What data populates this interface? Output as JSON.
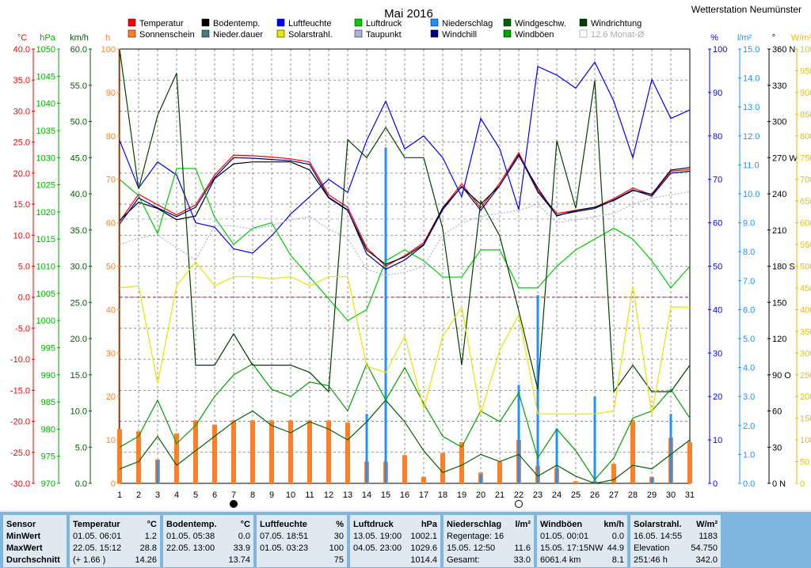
{
  "title": "Mai 2016",
  "station": "Wetterstation Neumünster",
  "legend_note": "12.6 Monat-Ø",
  "chart_data": {
    "type": "line",
    "x": [
      1,
      2,
      3,
      4,
      5,
      6,
      7,
      8,
      9,
      10,
      11,
      12,
      13,
      14,
      15,
      16,
      17,
      18,
      19,
      20,
      21,
      22,
      23,
      24,
      25,
      26,
      27,
      28,
      29,
      30,
      31
    ],
    "xticks": [
      "1",
      "2",
      "3",
      "4",
      "5",
      "6",
      "7",
      "8",
      "9",
      "10",
      "11",
      "12",
      "13",
      "14",
      "15",
      "16",
      "17",
      "18",
      "19",
      "20",
      "21",
      "22",
      "23",
      "24",
      "25",
      "26",
      "27",
      "28",
      "29",
      "30",
      "31"
    ],
    "axes": [
      {
        "unit": "°C",
        "color": "#ff0000",
        "min": -30,
        "max": 40,
        "ticks": [
          "40.0",
          "35.0",
          "30.0",
          "25.0",
          "20.0",
          "15.0",
          "10.0",
          "5.0",
          "0.0",
          "-5.0",
          "-10.0",
          "-15.0",
          "-20.0",
          "-25.0",
          "-30.0"
        ]
      },
      {
        "unit": "hPa",
        "color": "#00b000",
        "min": 970,
        "max": 1050,
        "ticks": [
          "1050",
          "1045",
          "1040",
          "1035",
          "1030",
          "1025",
          "1020",
          "1015",
          "1010",
          "1005",
          "1000",
          "995",
          "990",
          "985",
          "980",
          "975",
          "970"
        ]
      },
      {
        "unit": "km/h",
        "color": "#006000",
        "min": 0,
        "max": 60,
        "ticks": [
          "60.0",
          "55.0",
          "50.0",
          "45.0",
          "40.0",
          "35.0",
          "30.0",
          "25.0",
          "20.0",
          "15.0",
          "10.0",
          "5.0",
          "0.0"
        ]
      },
      {
        "unit": "h",
        "color": "#ff7f27",
        "min": 0,
        "max": 100,
        "ticks": [
          "100",
          "90",
          "80",
          "70",
          "60",
          "50",
          "40",
          "30",
          "20",
          "10",
          "0"
        ]
      },
      {
        "unit": "%",
        "color": "#0000ff",
        "min": 0,
        "max": 100,
        "ticks": [
          "100",
          "90",
          "80",
          "70",
          "60",
          "50",
          "40",
          "30",
          "20",
          "10",
          "0"
        ]
      },
      {
        "unit": "l/m²",
        "color": "#1e90ff",
        "min": 0,
        "max": 15,
        "ticks": [
          "15.0",
          "14.0",
          "13.0",
          "12.0",
          "11.0",
          "10.0",
          "9.0",
          "8.0",
          "7.0",
          "6.0",
          "5.0",
          "4.0",
          "3.0",
          "2.0",
          "1.0",
          "0.0"
        ]
      },
      {
        "unit": "°",
        "color": "#000000",
        "min": 0,
        "max": 360,
        "ticks": [
          "360 N",
          "330",
          "300",
          "270 W",
          "240",
          "210",
          "180 S",
          "150",
          "120",
          "90 O",
          "60",
          "30",
          "0 N"
        ]
      },
      {
        "unit": "W/m²",
        "color": "#e6c200",
        "min": 0,
        "max": 1000,
        "ticks": [
          "1000",
          "950",
          "900",
          "850",
          "800",
          "750",
          "700",
          "650",
          "600",
          "550",
          "500",
          "450",
          "400",
          "350",
          "300",
          "250",
          "200",
          "150",
          "100",
          "50",
          "0"
        ]
      }
    ],
    "series": [
      {
        "name": "Temperatur",
        "color": "#ff0000",
        "axis": 0,
        "values": [
          12.2,
          16.6,
          14.9,
          13.3,
          14.9,
          19.7,
          22.9,
          22.8,
          22.6,
          22.3,
          21.8,
          16.5,
          14.5,
          8.0,
          5.0,
          6.7,
          8.8,
          14.4,
          18.3,
          14.4,
          18.4,
          23.3,
          17.2,
          13.5,
          14.0,
          14.5,
          15.9,
          17.6,
          16.5,
          20.3,
          20.6
        ]
      },
      {
        "name": "Bodentemp.",
        "color": "#000000",
        "axis": 0,
        "values": [
          12.4,
          15.3,
          14.3,
          12.5,
          13.1,
          19.1,
          21.5,
          21.8,
          21.8,
          21.8,
          20.5,
          16.0,
          14.0,
          7.6,
          5.3,
          6.5,
          8.5,
          14.4,
          17.8,
          15.0,
          18.0,
          22.8,
          17.6,
          13.1,
          14.0,
          14.5,
          15.6,
          17.2,
          16.6,
          20.5,
          20.9
        ]
      },
      {
        "name": "Luftfeuchte",
        "color": "#0000ff",
        "axis": 4,
        "values": [
          79,
          68,
          74,
          71,
          60,
          59,
          54,
          53,
          57,
          62,
          66,
          70,
          67,
          79,
          88,
          77,
          80,
          75,
          66,
          84,
          77,
          63,
          96,
          94,
          91,
          97,
          88,
          75,
          93,
          84,
          86
        ]
      },
      {
        "name": "Luftdruck",
        "color": "#00cc00",
        "axis": 1,
        "values": [
          1026,
          1023,
          1016,
          1028,
          1028,
          1019,
          1014,
          1017,
          1018,
          1012,
          1008,
          1004,
          1000,
          1002,
          1011,
          1013,
          1011,
          1008,
          1008,
          1013,
          1013,
          1006,
          1006,
          1010,
          1013,
          1015,
          1017,
          1015,
          1011,
          1006,
          1010
        ]
      },
      {
        "name": "Windgeschw.",
        "color": "#006400",
        "axis": 2,
        "values": [
          2.0,
          3.0,
          6.5,
          2.5,
          4.5,
          6.5,
          8.5,
          10.0,
          8.0,
          7.0,
          8.5,
          7.5,
          6.0,
          8.5,
          11.5,
          8.5,
          4.5,
          1.5,
          2.5,
          4.0,
          3.0,
          4.0,
          1.0,
          2.5,
          1.0,
          0.0,
          0.5,
          2.5,
          2.0,
          4.0,
          6.0
        ]
      },
      {
        "name": "Windböen",
        "color": "#00a000",
        "axis": 2,
        "values": [
          5.0,
          6.5,
          11.5,
          5.5,
          8.0,
          12.0,
          15.0,
          16.5,
          13.0,
          12.0,
          14.0,
          13.5,
          10.0,
          16.5,
          11.5,
          16.0,
          11.0,
          6.5,
          5.0,
          10.0,
          8.5,
          12.5,
          3.5,
          7.5,
          4.5,
          0.5,
          3.5,
          9.0,
          10.0,
          13.0,
          9.0
        ]
      },
      {
        "name": "Windrichtung",
        "color": "#004000",
        "axis": 6,
        "values": [
          360,
          244,
          305,
          340,
          98,
          98,
          124,
          98,
          98,
          98,
          92,
          76,
          285,
          270,
          295,
          270,
          270,
          211,
          98,
          234,
          205,
          143,
          78,
          284,
          228,
          334,
          76,
          98,
          76,
          76,
          98
        ]
      },
      {
        "name": "Sonnenschein",
        "color": "#ff7f27",
        "axis": 3,
        "type": "bar",
        "values": [
          12.5,
          12.0,
          5.5,
          11.5,
          14.5,
          13.5,
          14.5,
          14.5,
          14.5,
          14.5,
          14.5,
          14.5,
          14.0,
          5.0,
          5.0,
          6.5,
          1.5,
          7.0,
          9.5,
          2.5,
          5.0,
          10.0,
          4.0,
          3.5,
          0.5,
          0.5,
          4.5,
          14.5,
          1.5,
          10.5,
          9.5
        ]
      },
      {
        "name": "Niederschlag",
        "color": "#1e90ff",
        "axis": 5,
        "type": "bar",
        "values": [
          0,
          0,
          0.8,
          0,
          0,
          0,
          0,
          0,
          0,
          0,
          0,
          0,
          0,
          2.4,
          11.6,
          0,
          0,
          0,
          0,
          0.3,
          0,
          3.4,
          6.5,
          1.9,
          0,
          3.0,
          0,
          0,
          0.2,
          2.4,
          0
        ]
      },
      {
        "name": "Solarstrahl.",
        "color": "#e6e600",
        "axis": 7,
        "values": [
          450,
          455,
          230,
          455,
          510,
          455,
          476,
          476,
          471,
          476,
          455,
          476,
          476,
          270,
          255,
          339,
          172,
          339,
          406,
          160,
          307,
          388,
          160,
          160,
          160,
          160,
          167,
          455,
          160,
          406,
          406
        ]
      },
      {
        "name": "Taupunkt",
        "color": "#b0b0d8",
        "axis": 0,
        "values": [
          8.5,
          9.5,
          10.0,
          8.0,
          6.0,
          11.5,
          11.5,
          11.0,
          11.5,
          12.5,
          13.0,
          11.0,
          9.5,
          4.5,
          3.5,
          4.0,
          5.0,
          10.0,
          12.0,
          13.0,
          13.5,
          14.0,
          15.0,
          12.0,
          12.5,
          13.0,
          13.5,
          15.0,
          16.0,
          16.5,
          17.0
        ]
      },
      {
        "name": "Windchill",
        "color": "#000080",
        "axis": 0,
        "values": [
          11.8,
          16.0,
          14.4,
          13.0,
          14.5,
          19.3,
          22.5,
          22.4,
          22.2,
          22.0,
          21.4,
          16.1,
          14.1,
          7.0,
          4.5,
          6.0,
          8.4,
          14.1,
          17.9,
          14.0,
          18.0,
          23.0,
          17.0,
          13.2,
          13.8,
          14.3,
          15.7,
          17.3,
          16.3,
          20.0,
          20.3
        ]
      }
    ],
    "reference_lines": [
      {
        "axis": 0,
        "value": 0,
        "color": "#ff0000"
      },
      {
        "axis": 0,
        "value": 12.6,
        "color": "#b0b0d8"
      }
    ],
    "markers": [
      {
        "x": 7,
        "symbol": "new-moon"
      },
      {
        "x": 22,
        "symbol": "full-moon"
      }
    ]
  },
  "stats": {
    "labels": {
      "sensor": "Sensor",
      "min": "MinWert",
      "max": "MaxWert",
      "avg": "Durchschnitt"
    },
    "blocks": [
      {
        "title": "Temperatur",
        "unit": "°C",
        "min_time": "01.05.  06:01",
        "min_val": "1.2",
        "max_time": "22.05.  15:12",
        "max_val": "28.8",
        "avg_extra": "(+ 1.66 )",
        "avg_val": "14.26"
      },
      {
        "title": "Bodentemp.",
        "unit": "°C",
        "min_time": "01.05.  05:38",
        "min_val": "0.0",
        "max_time": "22.05.  13:00",
        "max_val": "33.9",
        "avg_extra": "",
        "avg_val": "13.74"
      },
      {
        "title": "Luftfeuchte",
        "unit": "%",
        "min_time": "07.05.  18:51",
        "min_val": "30",
        "max_time": "01.05.  03:23",
        "max_val": "100",
        "avg_extra": "",
        "avg_val": "75"
      },
      {
        "title": "Luftdruck",
        "unit": "hPa",
        "min_time": "13.05.  19:00",
        "min_val": "1002.1",
        "max_time": "04.05.  23:00",
        "max_val": "1029.6",
        "avg_extra": "",
        "avg_val": "1014.4"
      },
      {
        "title": "Niederschlag",
        "unit": "l/m²",
        "min_time": "Regentage: 16",
        "min_val": "",
        "max_time": "15.05.  12:50",
        "max_val": "11.6",
        "avg_extra": "Gesamt:",
        "avg_val": "33.0"
      },
      {
        "title": "Windböen",
        "unit": "km/h",
        "min_time": "01.05.  00:01",
        "min_val": "0.0",
        "max_time": "15.05.  17:15NW",
        "max_val": "44.9",
        "avg_extra": "6061.4 km",
        "avg_val": "8.1"
      },
      {
        "title": "Solarstrahl.",
        "unit": "W/m²",
        "min_time": "16.05.  14:55",
        "min_val": "1183",
        "max_time": "Elevation",
        "max_val": "54.750",
        "avg_extra": "251:46 h",
        "avg_val": "342.0"
      }
    ]
  }
}
